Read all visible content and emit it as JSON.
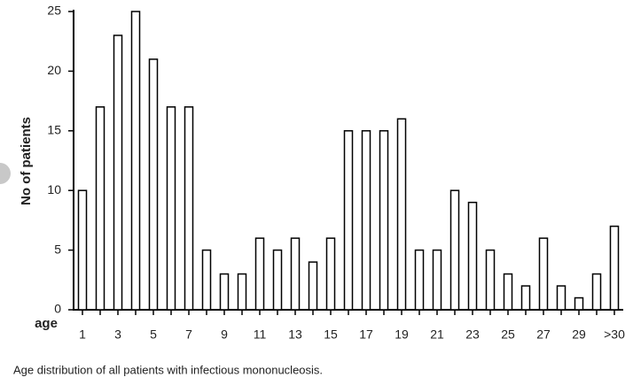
{
  "chart_data": {
    "type": "bar",
    "y_label": "No of patients",
    "x_label": "age",
    "caption": "Age distribution of all patients with infectious mononucleosis.",
    "categories": [
      "1",
      null,
      "3",
      null,
      "5",
      null,
      "7",
      null,
      "9",
      null,
      "11",
      null,
      "13",
      null,
      "15",
      null,
      "17",
      null,
      "19",
      null,
      "21",
      null,
      "23",
      null,
      "25",
      null,
      "27",
      null,
      "29",
      null,
      ">30"
    ],
    "values": [
      10,
      17,
      23,
      25,
      21,
      17,
      17,
      5,
      3,
      3,
      6,
      5,
      6,
      4,
      6,
      15,
      15,
      15,
      16,
      5,
      5,
      10,
      9,
      5,
      3,
      2,
      6,
      2,
      1,
      3,
      7
    ],
    "color": "#ffffff",
    "ylim": [
      0,
      25
    ],
    "yticks": [
      0,
      5,
      10,
      15,
      20,
      25
    ],
    "grid": false
  }
}
